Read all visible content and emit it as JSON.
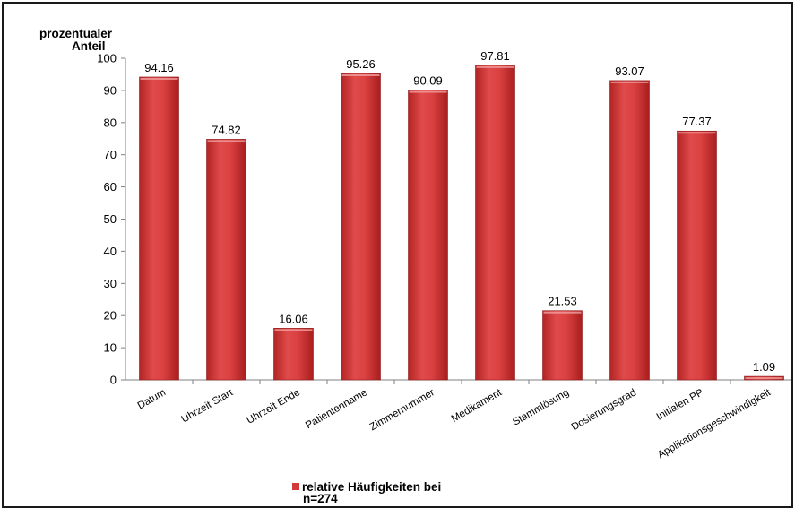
{
  "chart_data": {
    "type": "bar",
    "ylabel": "prozentualer Anteil",
    "ylabel_lines": [
      "prozentualer",
      "Anteil"
    ],
    "categories": [
      "Datum",
      "Uhrzeit Start",
      "Uhrzeit Ende",
      "Patientenname",
      "Zimmernummer",
      "Medikament",
      "Stammlösung",
      "Dosierungsgrad",
      "Initialen PP",
      "Applikationsgeschwindigkeit"
    ],
    "series": [
      {
        "name": "relative Häufigkeiten bei n=274",
        "values": [
          94.16,
          74.82,
          16.06,
          95.26,
          90.09,
          97.81,
          21.53,
          93.07,
          77.37,
          1.09
        ],
        "labels": [
          "94.16",
          "74.82",
          "16.06",
          "95.26",
          "90.09",
          "97.81",
          "21.53",
          "93.07",
          "77.37",
          "1.09"
        ]
      }
    ],
    "yticks": [
      0,
      10,
      20,
      30,
      40,
      50,
      60,
      70,
      80,
      90,
      100
    ],
    "ylim": [
      0,
      100
    ],
    "grid": false,
    "legend_position": "bottom",
    "legend_lines": [
      "relative Häufigkeiten bei",
      "n=274"
    ],
    "bar_color": "#d23a3a"
  }
}
